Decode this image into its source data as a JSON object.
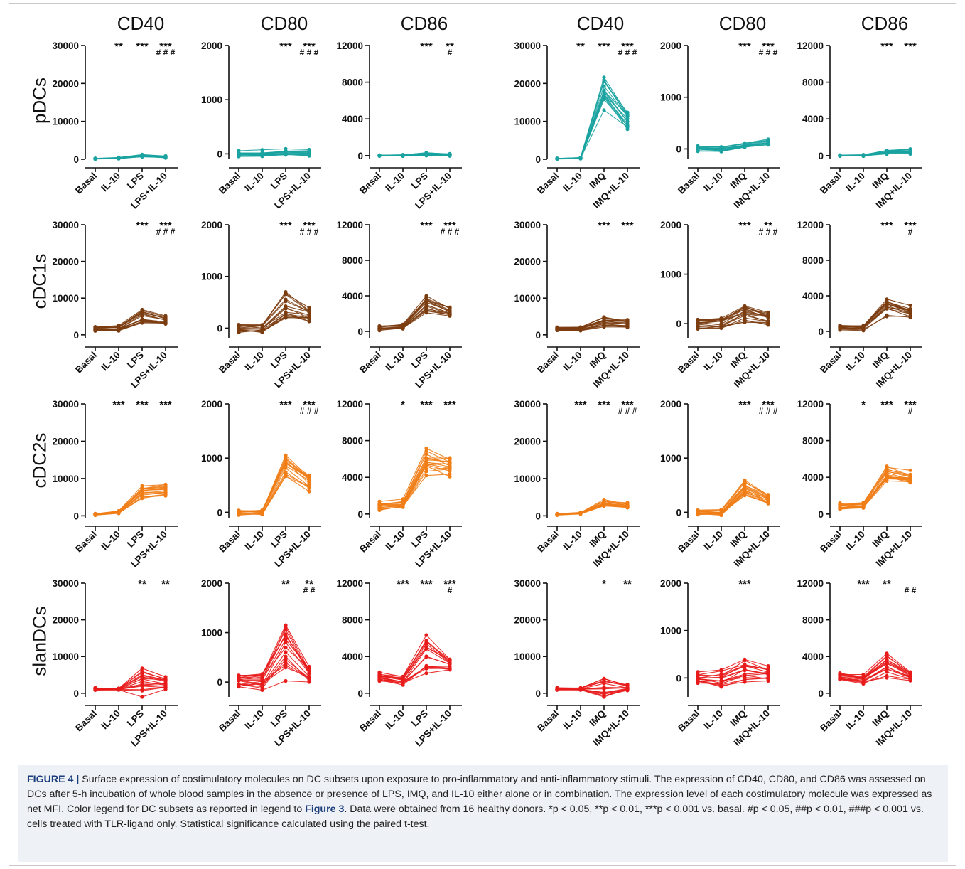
{
  "column_headers": [
    "CD40",
    "CD80",
    "CD86",
    "CD40",
    "CD80",
    "CD86"
  ],
  "row_headers": [
    "pDCs",
    "cDC1s",
    "cDC2s",
    "slanDCs"
  ],
  "colors": {
    "pDCs": "#1aa3a0",
    "cDC1s": "#7b3c10",
    "cDC2s": "#f07d16",
    "slanDCs": "#e81b1b",
    "axis": "#111111",
    "caption_bg": "#eef1f5",
    "caption_label": "#1a3c7a"
  },
  "caption": {
    "label": "FIGURE 4 |",
    "text_a": " Surface expression of costimulatory molecules on DC subsets upon exposure to pro-inflammatory and anti-inflammatory stimuli. The expression of CD40, CD80, and CD86 was assessed on DCs after 5-h incubation of whole blood samples in the absence or presence of LPS, IMQ, and IL-10 either alone or in combination. The expression level of each costimulatory molecule was expressed as net MFI. Color legend for DC subsets as reported in legend to ",
    "ref": "Figure 3",
    "text_b": ". Data were obtained from 16 healthy donors. *p < 0.05, **p < 0.01, ***p < 0.001 vs. basal. #p < 0.05, ##p < 0.01, ###p < 0.001 vs. cells treated with TLR-ligand only. Statistical significance calculated using the paired t-test."
  },
  "chart_data": [
    {
      "row": "pDCs",
      "marker": "CD40",
      "type": "line",
      "categories": [
        "Basal",
        "IL-10",
        "LPS",
        "LPS+IL-10"
      ],
      "ylim": [
        0,
        30000
      ],
      "yticks": [
        "0",
        "10000",
        "20000",
        "30000"
      ],
      "sig": [
        "",
        "**",
        "***",
        "***"
      ],
      "sig2": [
        "",
        "",
        "",
        "###"
      ],
      "medians": [
        150,
        300,
        900,
        600
      ],
      "spread": [
        80,
        150,
        300,
        250
      ]
    },
    {
      "row": "pDCs",
      "marker": "CD80",
      "type": "line",
      "categories": [
        "Basal",
        "IL-10",
        "LPS",
        "LPS+IL-10"
      ],
      "ylim": [
        -100,
        2000
      ],
      "yticks": [
        "0",
        "1000",
        "2000"
      ],
      "sig": [
        "",
        "",
        "***",
        "***"
      ],
      "sig2": [
        "",
        "",
        "",
        "###"
      ],
      "medians": [
        10,
        10,
        40,
        30
      ],
      "spread": [
        50,
        50,
        50,
        50
      ]
    },
    {
      "row": "pDCs",
      "marker": "CD86",
      "type": "line",
      "categories": [
        "Basal",
        "IL-10",
        "LPS",
        "LPS+IL-10"
      ],
      "ylim": [
        -400,
        12000
      ],
      "yticks": [
        "0",
        "4000",
        "8000",
        "12000"
      ],
      "sig": [
        "",
        "",
        "***",
        "**"
      ],
      "sig2": [
        "",
        "",
        "",
        "#"
      ],
      "medians": [
        0,
        20,
        150,
        80
      ],
      "spread": [
        40,
        60,
        150,
        100
      ]
    },
    {
      "row": "pDCs",
      "marker": "CD40",
      "type": "line",
      "categories": [
        "Basal",
        "IL-10",
        "IMQ",
        "IMQ+IL-10"
      ],
      "ylim": [
        0,
        30000
      ],
      "yticks": [
        "0",
        "10000",
        "20000",
        "30000"
      ],
      "sig": [
        "",
        "**",
        "***",
        "***"
      ],
      "sig2": [
        "",
        "",
        "",
        "###"
      ],
      "medians": [
        150,
        300,
        18000,
        10500
      ],
      "spread": [
        80,
        150,
        4500,
        2800
      ]
    },
    {
      "row": "pDCs",
      "marker": "CD80",
      "type": "line",
      "categories": [
        "Basal",
        "IL-10",
        "IMQ",
        "IMQ+IL-10"
      ],
      "ylim": [
        -200,
        2000
      ],
      "yticks": [
        "0",
        "1000",
        "2000"
      ],
      "sig": [
        "",
        "",
        "***",
        "***"
      ],
      "sig2": [
        "",
        "",
        "",
        "###"
      ],
      "medians": [
        10,
        0,
        70,
        130
      ],
      "spread": [
        50,
        50,
        40,
        50
      ]
    },
    {
      "row": "pDCs",
      "marker": "CD86",
      "type": "line",
      "categories": [
        "Basal",
        "IL-10",
        "IMQ",
        "IMQ+IL-10"
      ],
      "ylim": [
        -400,
        12000
      ],
      "yticks": [
        "0",
        "4000",
        "8000",
        "12000"
      ],
      "sig": [
        "",
        "",
        "***",
        "***"
      ],
      "sig2": [
        "",
        "",
        "",
        ""
      ],
      "medians": [
        0,
        20,
        400,
        450
      ],
      "spread": [
        40,
        60,
        200,
        200
      ]
    },
    {
      "row": "cDC1s",
      "marker": "CD40",
      "type": "line",
      "categories": [
        "Basal",
        "IL-10",
        "LPS",
        "LPS+IL-10"
      ],
      "ylim": [
        -1000,
        30000
      ],
      "yticks": [
        "0",
        "10000",
        "20000",
        "30000"
      ],
      "sig": [
        "",
        "",
        "***",
        "***"
      ],
      "sig2": [
        "",
        "",
        "",
        "###"
      ],
      "medians": [
        1700,
        1800,
        5000,
        4000
      ],
      "spread": [
        500,
        600,
        1800,
        1100
      ]
    },
    {
      "row": "cDC1s",
      "marker": "CD80",
      "type": "line",
      "categories": [
        "Basal",
        "IL-10",
        "LPS",
        "LPS+IL-10"
      ],
      "ylim": [
        -200,
        2000
      ],
      "yticks": [
        "0",
        "1000",
        "2000"
      ],
      "sig": [
        "",
        "",
        "***",
        "***"
      ],
      "sig2": [
        "",
        "",
        "",
        "###"
      ],
      "medians": [
        0,
        0,
        400,
        250
      ],
      "spread": [
        80,
        80,
        250,
        110
      ]
    },
    {
      "row": "cDC1s",
      "marker": "CD86",
      "type": "line",
      "categories": [
        "Basal",
        "IL-10",
        "LPS",
        "LPS+IL-10"
      ],
      "ylim": [
        -800,
        12000
      ],
      "yticks": [
        "0",
        "4000",
        "8000",
        "12000"
      ],
      "sig": [
        "",
        "",
        "***",
        "***"
      ],
      "sig2": [
        "",
        "",
        "",
        "###"
      ],
      "medians": [
        400,
        500,
        3000,
        2200
      ],
      "spread": [
        250,
        250,
        800,
        600
      ]
    },
    {
      "row": "cDC1s",
      "marker": "CD40",
      "type": "line",
      "categories": [
        "Basal",
        "IL-10",
        "IMQ",
        "IMQ+IL-10"
      ],
      "ylim": [
        -1000,
        30000
      ],
      "yticks": [
        "0",
        "10000",
        "20000",
        "30000"
      ],
      "sig": [
        "",
        "",
        "***",
        "***"
      ],
      "sig2": [
        "",
        "",
        "",
        ""
      ],
      "medians": [
        1600,
        1600,
        3500,
        3000
      ],
      "spread": [
        500,
        500,
        1200,
        1000
      ]
    },
    {
      "row": "cDC1s",
      "marker": "CD80",
      "type": "line",
      "categories": [
        "Basal",
        "IL-10",
        "IMQ",
        "IMQ+IL-10"
      ],
      "ylim": [
        -300,
        2000
      ],
      "yticks": [
        "0",
        "1000",
        "2000"
      ],
      "sig": [
        "",
        "",
        "***",
        "**"
      ],
      "sig2": [
        "",
        "",
        "",
        "###"
      ],
      "medians": [
        0,
        0,
        200,
        100
      ],
      "spread": [
        80,
        80,
        150,
        100
      ]
    },
    {
      "row": "cDC1s",
      "marker": "CD86",
      "type": "line",
      "categories": [
        "Basal",
        "IL-10",
        "IMQ",
        "IMQ+IL-10"
      ],
      "ylim": [
        -800,
        12000
      ],
      "yticks": [
        "0",
        "4000",
        "8000",
        "12000"
      ],
      "sig": [
        "",
        "",
        "***",
        "***"
      ],
      "sig2": [
        "",
        "",
        "",
        "#"
      ],
      "medians": [
        400,
        400,
        2500,
        2000
      ],
      "spread": [
        250,
        250,
        900,
        700
      ]
    },
    {
      "row": "cDC2s",
      "marker": "CD40",
      "type": "line",
      "categories": [
        "Basal",
        "IL-10",
        "LPS",
        "LPS+IL-10"
      ],
      "ylim": [
        -500,
        30000
      ],
      "yticks": [
        "0",
        "10000",
        "20000",
        "30000"
      ],
      "sig": [
        "",
        "***",
        "***",
        "***"
      ],
      "sig2": [
        "",
        "",
        "",
        ""
      ],
      "medians": [
        400,
        1000,
        6500,
        7000
      ],
      "spread": [
        200,
        300,
        1600,
        1300
      ]
    },
    {
      "row": "cDC2s",
      "marker": "CD80",
      "type": "line",
      "categories": [
        "Basal",
        "IL-10",
        "LPS",
        "LPS+IL-10"
      ],
      "ylim": [
        -100,
        2000
      ],
      "yticks": [
        "0",
        "1000",
        "2000"
      ],
      "sig": [
        "",
        "",
        "***",
        "***"
      ],
      "sig2": [
        "",
        "",
        "",
        "###"
      ],
      "medians": [
        0,
        0,
        850,
        550
      ],
      "spread": [
        40,
        50,
        200,
        160
      ]
    },
    {
      "row": "cDC2s",
      "marker": "CD86",
      "type": "line",
      "categories": [
        "Basal",
        "IL-10",
        "LPS",
        "LPS+IL-10"
      ],
      "ylim": [
        -400,
        12000
      ],
      "yticks": [
        "0",
        "4000",
        "8000",
        "12000"
      ],
      "sig": [
        "",
        "*",
        "***",
        "***"
      ],
      "sig2": [
        "",
        "",
        "",
        ""
      ],
      "medians": [
        900,
        1100,
        5800,
        5300
      ],
      "spread": [
        400,
        400,
        1200,
        1100
      ]
    },
    {
      "row": "cDC2s",
      "marker": "CD40",
      "type": "line",
      "categories": [
        "Basal",
        "IL-10",
        "IMQ",
        "IMQ+IL-10"
      ],
      "ylim": [
        -500,
        30000
      ],
      "yticks": [
        "0",
        "10000",
        "20000",
        "30000"
      ],
      "sig": [
        "",
        "***",
        "***",
        "***"
      ],
      "sig2": [
        "",
        "",
        "",
        "###"
      ],
      "medians": [
        400,
        800,
        3500,
        2700
      ],
      "spread": [
        200,
        300,
        1100,
        700
      ]
    },
    {
      "row": "cDC2s",
      "marker": "CD80",
      "type": "line",
      "categories": [
        "Basal",
        "IL-10",
        "IMQ",
        "IMQ+IL-10"
      ],
      "ylim": [
        -100,
        2000
      ],
      "yticks": [
        "0",
        "1000",
        "2000"
      ],
      "sig": [
        "",
        "",
        "***",
        "***"
      ],
      "sig2": [
        "",
        "",
        "",
        "###"
      ],
      "medians": [
        0,
        0,
        450,
        250
      ],
      "spread": [
        40,
        40,
        130,
        90
      ]
    },
    {
      "row": "cDC2s",
      "marker": "CD86",
      "type": "line",
      "categories": [
        "Basal",
        "IL-10",
        "IMQ",
        "IMQ+IL-10"
      ],
      "ylim": [
        -400,
        12000
      ],
      "yticks": [
        "0",
        "4000",
        "8000",
        "12000"
      ],
      "sig": [
        "",
        "*",
        "***",
        "***"
      ],
      "sig2": [
        "",
        "",
        "",
        "#"
      ],
      "medians": [
        900,
        1000,
        4500,
        4000
      ],
      "spread": [
        400,
        400,
        900,
        800
      ]
    },
    {
      "row": "slanDCs",
      "marker": "CD40",
      "type": "line",
      "categories": [
        "Basal",
        "IL-10",
        "LPS",
        "LPS+IL-10"
      ],
      "ylim": [
        -1000,
        30000
      ],
      "yticks": [
        "0",
        "10000",
        "20000",
        "30000"
      ],
      "sig": [
        "",
        "",
        "**",
        "**"
      ],
      "sig2": [
        "",
        "",
        "",
        ""
      ],
      "medians": [
        1200,
        1100,
        3500,
        2500
      ],
      "spread": [
        300,
        200,
        3500,
        1500
      ]
    },
    {
      "row": "slanDCs",
      "marker": "CD80",
      "type": "line",
      "categories": [
        "Basal",
        "IL-10",
        "LPS",
        "LPS+IL-10"
      ],
      "ylim": [
        -300,
        2000
      ],
      "yticks": [
        "0",
        "1000",
        "2000"
      ],
      "sig": [
        "",
        "",
        "**",
        "**"
      ],
      "sig2": [
        "",
        "",
        "",
        "##"
      ],
      "medians": [
        0,
        0,
        600,
        150
      ],
      "spread": [
        110,
        150,
        500,
        150
      ]
    },
    {
      "row": "slanDCs",
      "marker": "CD86",
      "type": "line",
      "categories": [
        "Basal",
        "IL-10",
        "LPS",
        "LPS+IL-10"
      ],
      "ylim": [
        -400,
        12000
      ],
      "yticks": [
        "0",
        "4000",
        "8000",
        "12000"
      ],
      "sig": [
        "",
        "***",
        "***",
        "***"
      ],
      "sig2": [
        "",
        "",
        "",
        "#"
      ],
      "medians": [
        1800,
        1400,
        4500,
        3200
      ],
      "spread": [
        400,
        400,
        1800,
        600
      ]
    },
    {
      "row": "slanDCs",
      "marker": "CD40",
      "type": "line",
      "categories": [
        "Basal",
        "IL-10",
        "IMQ",
        "IMQ+IL-10"
      ],
      "ylim": [
        -1000,
        30000
      ],
      "yticks": [
        "0",
        "10000",
        "20000",
        "30000"
      ],
      "sig": [
        "",
        "",
        "*",
        "**"
      ],
      "sig2": [
        "",
        "",
        "",
        ""
      ],
      "medians": [
        1200,
        1200,
        2000,
        1600
      ],
      "spread": [
        300,
        300,
        2500,
        700
      ]
    },
    {
      "row": "slanDCs",
      "marker": "CD80",
      "type": "line",
      "categories": [
        "Basal",
        "IL-10",
        "IMQ",
        "IMQ+IL-10"
      ],
      "ylim": [
        -400,
        2000
      ],
      "yticks": [
        "0",
        "1000",
        "2000"
      ],
      "sig": [
        "",
        "",
        "***",
        ""
      ],
      "sig2": [
        "",
        "",
        "",
        ""
      ],
      "medians": [
        0,
        0,
        200,
        100
      ],
      "spread": [
        110,
        150,
        220,
        150
      ]
    },
    {
      "row": "slanDCs",
      "marker": "CD86",
      "type": "line",
      "categories": [
        "Basal",
        "IL-10",
        "IMQ",
        "IMQ+IL-10"
      ],
      "ylim": [
        -400,
        12000
      ],
      "yticks": [
        "0",
        "4000",
        "8000",
        "12000"
      ],
      "sig": [
        "",
        "***",
        "**",
        ""
      ],
      "sig2": [
        "",
        "",
        "",
        "##"
      ],
      "medians": [
        1800,
        1500,
        3000,
        1900
      ],
      "spread": [
        400,
        400,
        1100,
        400
      ]
    }
  ]
}
